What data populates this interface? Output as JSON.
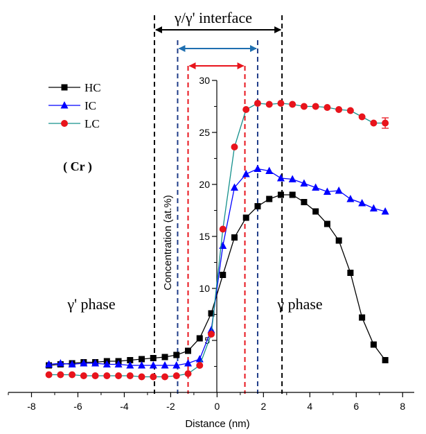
{
  "chart_data": {
    "type": "line",
    "xlabel": "Distance (nm)",
    "ylabel": "Concentration (at.%)",
    "xlim": [
      -9,
      8.5
    ],
    "ylim": [
      -1,
      30
    ],
    "x_ticks": [
      -8,
      -6,
      -4,
      -2,
      0,
      2,
      4,
      6,
      8
    ],
    "y_ticks": [
      5,
      10,
      15,
      20,
      25,
      30
    ],
    "grid": false,
    "legend": {
      "placement": "top-left",
      "entries": [
        "HC",
        "IC",
        "LC"
      ]
    },
    "annotations": {
      "interface_label": "γ/γ' interface",
      "gamma_prime_phase": "γ' phase",
      "gamma_phase": "γ phase",
      "element": "( Cr )"
    },
    "reference_lines": [
      {
        "x": -2.7,
        "color": "#000000"
      },
      {
        "x": 2.8,
        "color": "#000000"
      },
      {
        "x": -1.7,
        "color": "#1f3c88"
      },
      {
        "x": 1.75,
        "color": "#1f3c88"
      },
      {
        "x": -1.25,
        "color": "#e8141c"
      },
      {
        "x": 1.2,
        "color": "#e8141c"
      }
    ],
    "series": [
      {
        "name": "HC",
        "color": "#000000",
        "marker": "square",
        "x": [
          -7.25,
          -6.75,
          -6.25,
          -5.75,
          -5.25,
          -4.75,
          -4.25,
          -3.75,
          -3.25,
          -2.75,
          -2.25,
          -1.75,
          -1.25,
          -0.75,
          -0.25,
          0.25,
          0.75,
          1.25,
          1.75,
          2.25,
          2.75,
          3.25,
          3.75,
          4.25,
          4.75,
          5.25,
          5.75,
          6.25,
          6.75,
          7.25
        ],
        "y": [
          2.6,
          2.7,
          2.8,
          2.9,
          2.9,
          3.0,
          3.0,
          3.1,
          3.2,
          3.3,
          3.4,
          3.6,
          4.0,
          5.2,
          7.6,
          11.3,
          14.9,
          16.8,
          17.9,
          18.6,
          19.0,
          19.0,
          18.3,
          17.4,
          16.2,
          14.6,
          11.5,
          7.2,
          4.6,
          3.1
        ]
      },
      {
        "name": "IC",
        "color": "#0000ff",
        "marker": "triangle",
        "x": [
          -7.25,
          -6.75,
          -6.25,
          -5.75,
          -5.25,
          -4.75,
          -4.25,
          -3.75,
          -3.25,
          -2.75,
          -2.25,
          -1.75,
          -1.25,
          -0.75,
          -0.25,
          0.25,
          0.75,
          1.25,
          1.75,
          2.25,
          2.75,
          3.25,
          3.75,
          4.25,
          4.75,
          5.25,
          5.75,
          6.25,
          6.75,
          7.25
        ],
        "y": [
          2.7,
          2.8,
          2.7,
          2.8,
          2.8,
          2.7,
          2.7,
          2.6,
          2.6,
          2.6,
          2.6,
          2.6,
          2.8,
          3.2,
          6.0,
          14.1,
          19.7,
          21.0,
          21.5,
          21.3,
          20.6,
          20.5,
          20.1,
          19.7,
          19.3,
          19.4,
          18.6,
          18.2,
          17.7,
          17.4
        ]
      },
      {
        "name": "LC",
        "color": "#e8141c",
        "marker": "circle",
        "line_color": "#14908c",
        "x": [
          -7.25,
          -6.75,
          -6.25,
          -5.75,
          -5.25,
          -4.75,
          -4.25,
          -3.75,
          -3.25,
          -2.75,
          -2.25,
          -1.75,
          -1.25,
          -0.75,
          -0.25,
          0.25,
          0.75,
          1.25,
          1.75,
          2.25,
          2.75,
          3.25,
          3.75,
          4.25,
          4.75,
          5.25,
          5.75,
          6.25,
          6.75,
          7.25
        ],
        "y": [
          1.7,
          1.7,
          1.7,
          1.6,
          1.6,
          1.6,
          1.6,
          1.6,
          1.5,
          1.5,
          1.5,
          1.6,
          1.8,
          2.6,
          5.6,
          15.7,
          23.6,
          27.2,
          27.8,
          27.7,
          27.8,
          27.7,
          27.5,
          27.5,
          27.4,
          27.2,
          27.1,
          26.5,
          25.9,
          25.9
        ],
        "error_bar": {
          "x": 7.25,
          "y": 25.9,
          "err": 0.5
        }
      }
    ]
  }
}
